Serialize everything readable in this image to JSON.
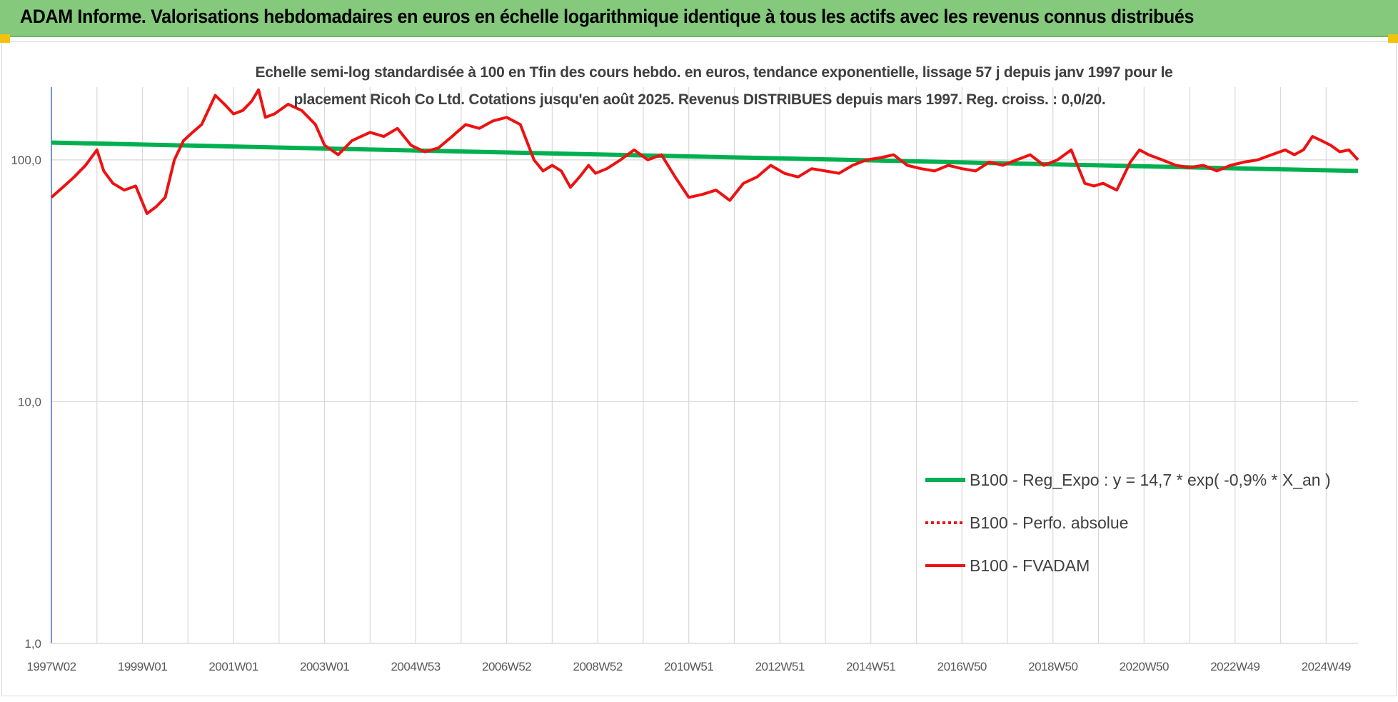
{
  "header": {
    "title": "ADAM Informe. Valorisations hebdomadaires en euros en échelle logarithmique identique à tous les actifs avec les revenus connus distribués"
  },
  "colors": {
    "header_bg": "#84c97c",
    "regression": "#00b050",
    "fvadam": "#ee1111",
    "perfo": "#ee1111",
    "grid": "#d9d9d9",
    "corner_accent": "#f4c20d"
  },
  "chart_data": {
    "type": "line",
    "title_line1": "Echelle semi-log standardisée à 100 en Tfin des cours hebdo. en euros, tendance exponentielle, lissage 57 j depuis janv 1997 pour le",
    "title_line2": "placement Ricoh Co Ltd. Cotations jusqu'en août 2025. Revenus DISTRIBUES depuis mars 1997. Reg. croiss. : 0,0/20.",
    "y_scale": "log",
    "ylim": [
      1,
      200
    ],
    "y_ticks": [
      1,
      10,
      100
    ],
    "y_tick_labels": [
      "1,0",
      "10,0",
      "100,0"
    ],
    "x_range": [
      1997.0,
      2025.7
    ],
    "x_tick_labels": [
      "1997W02",
      "1999W01",
      "2001W01",
      "2003W01",
      "2004W53",
      "2006W52",
      "2008W52",
      "2010W51",
      "2012W51",
      "2014W51",
      "2016W50",
      "2018W50",
      "2020W50",
      "2022W49",
      "2024W49"
    ],
    "x_tick_positions": [
      1997.0,
      1999.0,
      2001.0,
      2003.0,
      2005.0,
      2007.0,
      2009.0,
      2011.0,
      2013.0,
      2015.0,
      2017.0,
      2019.0,
      2021.0,
      2023.0,
      2025.0
    ],
    "legend_position": "bottom-right",
    "series": [
      {
        "name": "B100 - Reg_Expo : y = 14,7 * exp( -0,9% *  X_an )",
        "style": "solid-thick",
        "x": [
          1997.0,
          2025.7
        ],
        "y": [
          118,
          90
        ]
      },
      {
        "name": "B100 - Perfo. absolue",
        "style": "dotted",
        "x": [],
        "y": []
      },
      {
        "name": "B100 - FVADAM",
        "style": "solid",
        "x": [
          1997.0,
          1997.25,
          1997.5,
          1997.75,
          1998.0,
          1998.15,
          1998.35,
          1998.6,
          1998.85,
          1999.1,
          1999.3,
          1999.5,
          1999.7,
          1999.9,
          2000.1,
          2000.3,
          2000.6,
          2000.8,
          2001.0,
          2001.2,
          2001.4,
          2001.55,
          2001.7,
          2001.9,
          2002.2,
          2002.5,
          2002.8,
          2003.0,
          2003.3,
          2003.6,
          2004.0,
          2004.3,
          2004.6,
          2004.9,
          2005.2,
          2005.5,
          2005.8,
          2006.1,
          2006.4,
          2006.7,
          2007.0,
          2007.3,
          2007.6,
          2007.8,
          2008.0,
          2008.2,
          2008.4,
          2008.6,
          2008.8,
          2008.95,
          2009.2,
          2009.5,
          2009.8,
          2010.1,
          2010.4,
          2010.7,
          2011.0,
          2011.3,
          2011.6,
          2011.9,
          2012.2,
          2012.5,
          2012.8,
          2013.1,
          2013.4,
          2013.7,
          2014.0,
          2014.3,
          2014.6,
          2014.9,
          2015.2,
          2015.5,
          2015.8,
          2016.1,
          2016.4,
          2016.7,
          2017.0,
          2017.3,
          2017.6,
          2017.9,
          2018.2,
          2018.5,
          2018.8,
          2019.1,
          2019.4,
          2019.7,
          2019.9,
          2020.1,
          2020.4,
          2020.7,
          2020.9,
          2021.1,
          2021.4,
          2021.7,
          2022.0,
          2022.3,
          2022.6,
          2022.9,
          2023.2,
          2023.5,
          2023.8,
          2024.1,
          2024.3,
          2024.5,
          2024.7,
          2024.9,
          2025.1,
          2025.3,
          2025.5,
          2025.7
        ],
        "y": [
          70,
          77,
          85,
          95,
          110,
          90,
          80,
          75,
          78,
          60,
          64,
          70,
          100,
          120,
          130,
          140,
          185,
          170,
          155,
          160,
          175,
          195,
          150,
          155,
          170,
          160,
          140,
          115,
          105,
          120,
          130,
          125,
          135,
          115,
          108,
          112,
          125,
          140,
          135,
          145,
          150,
          140,
          100,
          90,
          95,
          90,
          77,
          85,
          95,
          88,
          92,
          100,
          110,
          100,
          105,
          85,
          70,
          72,
          75,
          68,
          80,
          85,
          95,
          88,
          85,
          92,
          90,
          88,
          95,
          100,
          102,
          105,
          95,
          92,
          90,
          95,
          92,
          90,
          98,
          95,
          100,
          105,
          95,
          100,
          110,
          80,
          78,
          80,
          75,
          98,
          110,
          105,
          100,
          95,
          93,
          95,
          90,
          95,
          98,
          100,
          105,
          110,
          105,
          110,
          125,
          120,
          115,
          108,
          110,
          100
        ]
      }
    ]
  }
}
